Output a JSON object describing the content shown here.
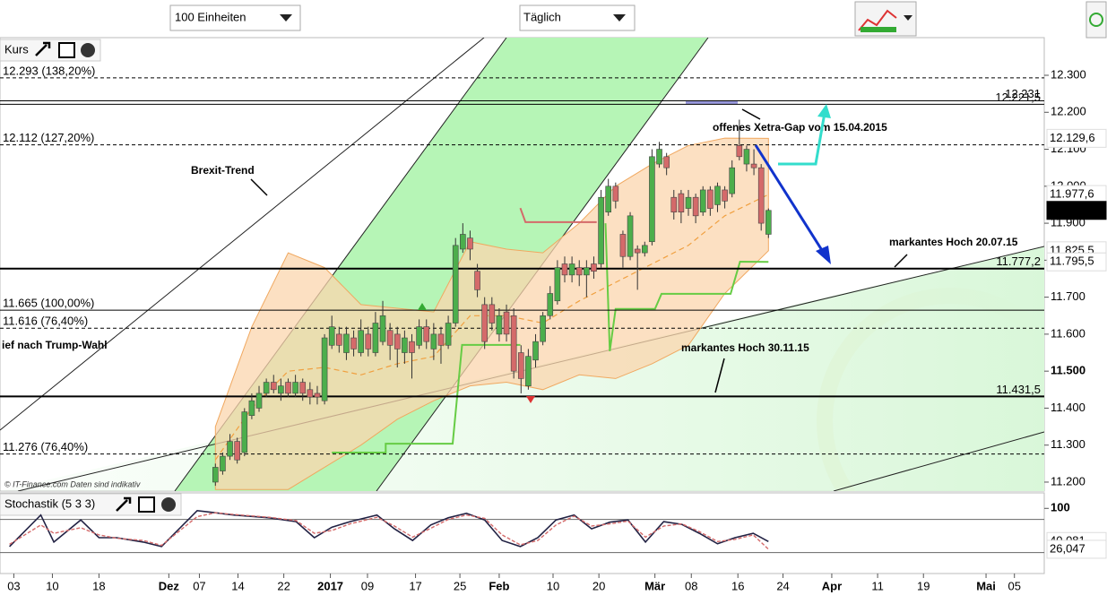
{
  "toolbar": {
    "units": "100 Einheiten",
    "interval": "Täglich"
  },
  "chart_data": [
    {
      "type": "candlestick",
      "title": "Kurs",
      "colors": {
        "up": "#4cae4c",
        "down": "#d46a6a",
        "band": "#f0a860",
        "band_fill": "#fbd5ad",
        "middle": "#f0a040"
      },
      "open": [
        11200,
        11230,
        11270,
        11310,
        11280,
        11380,
        11400,
        11440,
        11470,
        11440,
        11470,
        11440,
        11470,
        11450,
        11440,
        11420,
        11570,
        11600,
        11550,
        11590,
        11550,
        11600,
        11550,
        11580,
        11610,
        11600,
        11550,
        11580,
        11570,
        11620,
        11560,
        11600,
        11570,
        11630,
        11830,
        11860,
        11770,
        11680,
        11680,
        11600,
        11660,
        11650,
        11550,
        11460,
        11530,
        11580,
        11650,
        11690,
        11790,
        11760,
        11780,
        11760,
        11790,
        11790,
        11930,
        12000,
        11870,
        11810,
        11830,
        11820,
        11850,
        12060,
        12080,
        11970,
        11980,
        11940,
        11970,
        11930,
        11990,
        11950,
        11990,
        11980,
        12110,
        12060,
        12060,
        12050,
        11870
      ],
      "high": [
        11250,
        11280,
        11330,
        11320,
        11400,
        11440,
        11460,
        11480,
        11490,
        11480,
        11480,
        11490,
        11480,
        11470,
        11460,
        11600,
        11650,
        11620,
        11620,
        11610,
        11640,
        11620,
        11660,
        11690,
        11630,
        11620,
        11610,
        11600,
        11640,
        11640,
        11630,
        11620,
        11650,
        11860,
        11900,
        11880,
        11790,
        11700,
        11700,
        11670,
        11680,
        11670,
        11570,
        11560,
        11600,
        11660,
        11730,
        11800,
        11810,
        11810,
        11800,
        11800,
        11810,
        11990,
        12020,
        12010,
        11880,
        11930,
        11840,
        11850,
        12100,
        12120,
        12090,
        11990,
        11990,
        11990,
        11980,
        12000,
        12000,
        12010,
        12000,
        12070,
        12180,
        12110,
        12100,
        12060,
        11940
      ],
      "low": [
        11190,
        11220,
        11260,
        11250,
        11270,
        11370,
        11390,
        11430,
        11440,
        11420,
        11430,
        11430,
        11420,
        11410,
        11410,
        11410,
        11560,
        11550,
        11530,
        11540,
        11540,
        11540,
        11540,
        11570,
        11530,
        11510,
        11520,
        11480,
        11560,
        11560,
        11530,
        11520,
        11560,
        11620,
        11820,
        11800,
        11700,
        11560,
        11610,
        11580,
        11580,
        11480,
        11440,
        11450,
        11510,
        11570,
        11640,
        11680,
        11740,
        11740,
        11730,
        11700,
        11750,
        11780,
        11920,
        11940,
        11780,
        11800,
        11720,
        11810,
        11840,
        12050,
        12030,
        11910,
        11900,
        11920,
        11900,
        11920,
        11920,
        11930,
        11940,
        11970,
        12070,
        12040,
        12030,
        11880,
        11860
      ],
      "close": [
        11240,
        11270,
        11310,
        11260,
        11390,
        11420,
        11440,
        11470,
        11450,
        11460,
        11440,
        11470,
        11440,
        11430,
        11430,
        11590,
        11620,
        11570,
        11600,
        11560,
        11610,
        11560,
        11630,
        11650,
        11570,
        11560,
        11590,
        11550,
        11620,
        11580,
        11600,
        11570,
        11630,
        11840,
        11870,
        11830,
        11720,
        11580,
        11630,
        11650,
        11600,
        11500,
        11480,
        11540,
        11580,
        11650,
        11710,
        11780,
        11760,
        11790,
        11760,
        11780,
        11770,
        11970,
        12000,
        11960,
        11810,
        11920,
        11820,
        11840,
        12080,
        12100,
        12050,
        11930,
        11930,
        11970,
        11920,
        11990,
        11940,
        12000,
        11960,
        12050,
        12080,
        12100,
        12050,
        11900,
        11934.7
      ],
      "bands": {
        "x": [
          0,
          5,
          10,
          15,
          20,
          25,
          30,
          35,
          40,
          45,
          50,
          55,
          60,
          65,
          70,
          76
        ],
        "upper": [
          11350,
          11620,
          11820,
          11780,
          11680,
          11670,
          11660,
          11850,
          11830,
          11820,
          11900,
          12000,
          12060,
          12110,
          12130,
          12129.6
        ],
        "lower": [
          11180,
          11180,
          11180,
          11240,
          11300,
          11370,
          11420,
          11460,
          11470,
          11450,
          11490,
          11480,
          11520,
          11570,
          11710,
          11825.5
        ],
        "middle": [
          11260,
          11400,
          11500,
          11510,
          11490,
          11520,
          11540,
          11650,
          11650,
          11630,
          11690,
          11740,
          11790,
          11840,
          11920,
          11977.6
        ]
      },
      "stops": [
        {
          "color": "#66cc44",
          "x": [
            16,
            23.4,
            23.4,
            32.6,
            33.9,
            41.9,
            null,
            53.6,
            54.2,
            55,
            60.4,
            61.3,
            70.8,
            72.1,
            76
          ],
          "values": [
            11280,
            11280,
            11304,
            11304,
            11571,
            11571,
            null,
            11900,
            11554,
            11668,
            11668,
            11709,
            11709,
            11796,
            11795.5
          ]
        },
        {
          "color": "#d46a6a",
          "x": [
            41.9,
            42.6,
            52.4
          ],
          "values": [
            11941,
            11903,
            11903
          ]
        }
      ],
      "levels": [
        {
          "value": 12293,
          "label": "12.293 (138,20%)",
          "style": "dashed",
          "side": "left"
        },
        {
          "value": 12231,
          "label": "12.231",
          "style": "solid",
          "side": "right"
        },
        {
          "value": 12221.5,
          "label": "12.221,5",
          "style": "solid",
          "side": "right"
        },
        {
          "value": 12112,
          "label": "12.112 (127,20%)",
          "style": "dashed",
          "side": "left"
        },
        {
          "value": 11777.2,
          "label": "11.777,2",
          "style": "bold",
          "side": "right"
        },
        {
          "value": 11665,
          "label": "11.665 (100,00%)",
          "style": "solid",
          "side": "left"
        },
        {
          "value": 11616,
          "label": "11.616 (76,40%)",
          "style": "dashed",
          "side": "left"
        },
        {
          "value": 11431.5,
          "label": "11.431,5",
          "style": "bold",
          "side": "right"
        },
        {
          "value": 11276,
          "label": "11.276 (76,40%)",
          "style": "dashed",
          "side": "left"
        }
      ],
      "price_labels": [
        {
          "value": 12129.6,
          "label": "12.129,6",
          "color": "#e89a50"
        },
        {
          "value": 11977.6,
          "label": "11.977,6",
          "color": "#e89a50"
        },
        {
          "value": 11934.7,
          "label": "11.934,7",
          "color": "#000000",
          "box": true
        },
        {
          "value": 11825.5,
          "label": "11.825,5",
          "color": "#e89a50"
        },
        {
          "value": 11795.5,
          "label": "11.795,5",
          "color": "#55bb44"
        }
      ],
      "annotations": [
        "Brexit-Trend",
        "offenes Xetra-Gap vom 15.04.2015",
        "markantes Hoch 20.07.15",
        "markantes Hoch 30.11.15",
        "ief nach Trump-Wahl",
        "© IT-Finance.com  Daten sind indikativ"
      ],
      "xlim": [
        -29.6,
        113.9
      ],
      "ylim": [
        11175.7,
        12401.8
      ],
      "yticks": [
        {
          "value": 12300,
          "label": "12.300"
        },
        {
          "value": 12200,
          "label": "12.200"
        },
        {
          "value": 12100,
          "label": "12.100"
        },
        {
          "value": 12000,
          "label": "12.000"
        },
        {
          "value": 11900,
          "label": "11.900"
        },
        {
          "value": 11800,
          "label": "11.800"
        },
        {
          "value": 11700,
          "label": "11.700"
        },
        {
          "value": 11600,
          "label": "11.600"
        },
        {
          "value": 11500,
          "label": "11.500",
          "bold": true
        },
        {
          "value": 11400,
          "label": "11.400"
        },
        {
          "value": 11300,
          "label": "11.300"
        },
        {
          "value": 11200,
          "label": "11.200"
        }
      ]
    },
    {
      "type": "line",
      "title": "Stochastik (5 3 3)",
      "x": [
        -28.3,
        -24.0,
        -22.2,
        -18.5,
        -16.0,
        -13.6,
        -9.9,
        -7.4,
        -2.5,
        0,
        2.5,
        7.4,
        11.1,
        13.6,
        16.0,
        18.5,
        22.2,
        24.6,
        27.1,
        29.6,
        32.0,
        34.5,
        37.0,
        39.4,
        41.9,
        44.3,
        46.8,
        49.3,
        51.7,
        54.2,
        56.7,
        59.1,
        61.6,
        64.1,
        66.5,
        69.0,
        71.4,
        73.9,
        76
      ],
      "series": [
        {
          "color": "#222244",
          "end_label": "40,081",
          "label_color": "#d46a6a",
          "values": [
            31,
            88,
            39,
            79,
            47,
            47,
            39,
            31,
            96,
            92,
            88,
            83,
            76,
            47,
            66,
            76,
            88,
            63,
            42,
            70,
            83,
            91,
            79,
            42,
            31,
            47,
            79,
            88,
            63,
            75,
            79,
            39,
            76,
            71,
            55,
            36,
            47,
            55,
            40.081
          ]
        },
        {
          "color": "#d46a6a",
          "dashed": true,
          "end_label": "26,047",
          "label_color": "#333333",
          "values": [
            35,
            70,
            55,
            65,
            52,
            46,
            42,
            33,
            85,
            92,
            89,
            84,
            78,
            55,
            60,
            72,
            84,
            68,
            48,
            64,
            80,
            88,
            82,
            52,
            34,
            42,
            70,
            86,
            68,
            72,
            77,
            48,
            68,
            72,
            58,
            40,
            44,
            52,
            26.047
          ]
        }
      ],
      "levels": [
        80,
        20
      ],
      "xlim": [
        -29.6,
        113.9
      ],
      "ylim": [
        -17.8,
        128
      ],
      "yticks": [
        100
      ],
      "xticks": [
        {
          "value": -27.7,
          "label": "03"
        },
        {
          "value": -22.4,
          "label": "10"
        },
        {
          "value": -16.0,
          "label": "18"
        },
        {
          "value": -6.4,
          "label": "Dez",
          "bold": true
        },
        {
          "value": -2.2,
          "label": "07"
        },
        {
          "value": 3.1,
          "label": "14"
        },
        {
          "value": 9.4,
          "label": "22"
        },
        {
          "value": 15.8,
          "label": "2017",
          "bold": true
        },
        {
          "value": 20.9,
          "label": "09"
        },
        {
          "value": 27.5,
          "label": "17"
        },
        {
          "value": 33.6,
          "label": "25"
        },
        {
          "value": 39.0,
          "label": "Feb",
          "bold": true
        },
        {
          "value": 46.4,
          "label": "10"
        },
        {
          "value": 52.7,
          "label": "20"
        },
        {
          "value": 60.4,
          "label": "Mär",
          "bold": true
        },
        {
          "value": 65.4,
          "label": "08"
        },
        {
          "value": 71.8,
          "label": "16"
        },
        {
          "value": 78.0,
          "label": "24"
        },
        {
          "value": 84.7,
          "label": "Apr",
          "bold": true
        },
        {
          "value": 91.0,
          "label": "11"
        },
        {
          "value": 97.3,
          "label": "19"
        },
        {
          "value": 105.9,
          "label": "Mai",
          "bold": true
        },
        {
          "value": 109.8,
          "label": "05"
        }
      ]
    }
  ]
}
